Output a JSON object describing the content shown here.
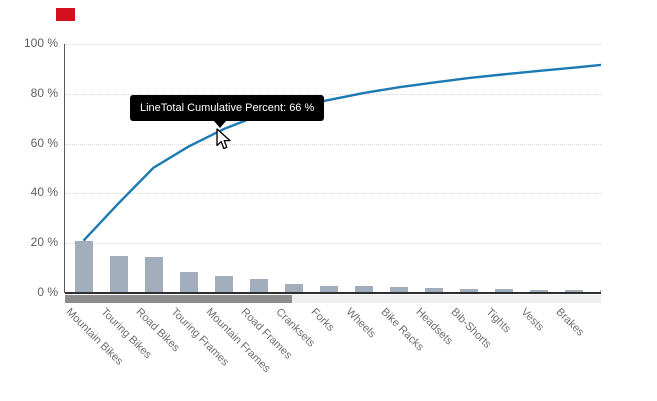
{
  "annotation_marker": {
    "color": "#d2101e"
  },
  "tooltip": {
    "text": "LineTotal Cumulative Percent: 66 %",
    "bg_color": "#000000",
    "text_color": "#ffffff"
  },
  "chart_data": {
    "type": "bar",
    "subtype": "pareto (bars + cumulative percent line)",
    "title": "",
    "xlabel": "",
    "ylabel": "",
    "categories": [
      "Mountain Bikes",
      "Touring Bikes",
      "Road Bikes",
      "Touring Frames",
      "Mountain Frames",
      "Road Frames",
      "Cranksets",
      "Forks",
      "Wheels",
      "Bike Racks",
      "Headsets",
      "Bib-Shorts",
      "Tights",
      "Vests",
      "Brakes",
      ""
    ],
    "series": [
      {
        "name": "",
        "type": "bar",
        "values": [
          21,
          15,
          14.3,
          8.5,
          7,
          5.5,
          3.5,
          2.7,
          2.8,
          2.3,
          1.9,
          1.8,
          1.5,
          1.4,
          1.3,
          1.4
        ]
      },
      {
        "name": "LineTotal Cumulative Percent",
        "type": "line",
        "values": [
          21,
          36,
          50.3,
          58.8,
          65.8,
          71.3,
          74.8,
          77.5,
          80.3,
          82.6,
          84.5,
          86.3,
          87.8,
          89.2,
          90.5,
          91.9
        ]
      }
    ],
    "y_ticks": [
      "100 %",
      "80 %",
      "60 %",
      "40 %",
      "20 %",
      "0 %"
    ],
    "ylim": [
      0,
      100
    ],
    "grid": "horizontal dotted lines at 20% steps",
    "legend": "none",
    "hovered_point": {
      "category": "Mountain Frames",
      "series": "LineTotal Cumulative Percent",
      "value_label": "66 %"
    },
    "colors": {
      "bar": "#a2aebc",
      "line": "#1b7ab3",
      "grid": "#d9d9d9",
      "axis": "#2e2e2e",
      "tick_text": "#5f5f5f",
      "category_text": "#707070"
    }
  },
  "scrollbar": {
    "thumb_color": "#8d8d8d",
    "track_color": "#efefef"
  }
}
